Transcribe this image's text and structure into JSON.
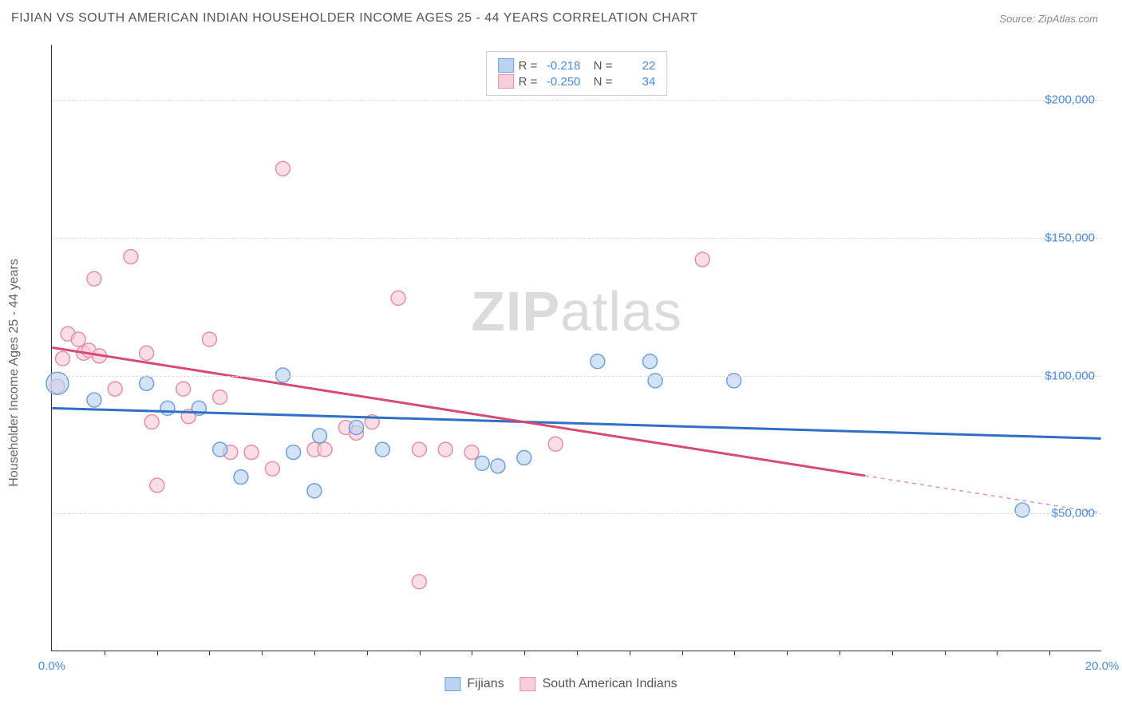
{
  "title": "FIJIAN VS SOUTH AMERICAN INDIAN HOUSEHOLDER INCOME AGES 25 - 44 YEARS CORRELATION CHART",
  "source_label": "Source:",
  "source_name": "ZipAtlas.com",
  "y_axis_label": "Householder Income Ages 25 - 44 years",
  "watermark_bold": "ZIP",
  "watermark_rest": "atlas",
  "chart": {
    "type": "scatter",
    "xlim": [
      0,
      20
    ],
    "ylim": [
      0,
      220000
    ],
    "x_tick_labels": {
      "0": "0.0%",
      "20": "20.0%"
    },
    "x_minor_ticks": [
      1,
      2,
      3,
      4,
      5,
      6,
      7,
      8,
      9,
      10,
      11,
      12,
      13,
      14,
      15,
      16,
      17,
      18,
      19
    ],
    "y_ticks": [
      50000,
      100000,
      150000,
      200000
    ],
    "y_tick_labels": {
      "50000": "$50,000",
      "100000": "$100,000",
      "150000": "$150,000",
      "200000": "$200,000"
    },
    "background_color": "#ffffff",
    "grid_color": "#dddddd",
    "series": [
      {
        "key": "fijians",
        "label": "Fijians",
        "color_stroke": "#6fa0dd",
        "color_fill": "#bcd3ef",
        "fill_opacity": 0.65,
        "marker_r": 9,
        "R": "-0.218",
        "N": "22",
        "regression": {
          "x1": 0.0,
          "y1": 88000,
          "x2": 20.0,
          "y2": 77000,
          "color": "#2f6fc7",
          "width": 3,
          "dash_after_x": null
        },
        "points": [
          {
            "x": 0.1,
            "y": 97000,
            "r": 14
          },
          {
            "x": 0.8,
            "y": 91000
          },
          {
            "x": 1.8,
            "y": 97000
          },
          {
            "x": 2.2,
            "y": 88000
          },
          {
            "x": 2.8,
            "y": 88000
          },
          {
            "x": 3.2,
            "y": 73000
          },
          {
            "x": 3.6,
            "y": 63000
          },
          {
            "x": 4.4,
            "y": 100000
          },
          {
            "x": 4.6,
            "y": 72000
          },
          {
            "x": 5.0,
            "y": 58000
          },
          {
            "x": 5.1,
            "y": 78000
          },
          {
            "x": 5.8,
            "y": 81000
          },
          {
            "x": 6.3,
            "y": 73000
          },
          {
            "x": 8.2,
            "y": 68000
          },
          {
            "x": 8.5,
            "y": 67000
          },
          {
            "x": 9.0,
            "y": 70000
          },
          {
            "x": 10.4,
            "y": 105000
          },
          {
            "x": 11.4,
            "y": 105000
          },
          {
            "x": 11.5,
            "y": 98000
          },
          {
            "x": 13.0,
            "y": 98000
          },
          {
            "x": 18.5,
            "y": 51000
          }
        ]
      },
      {
        "key": "sai",
        "label": "South American Indians",
        "color_stroke": "#e78fa8",
        "color_fill": "#f6cdd8",
        "fill_opacity": 0.65,
        "marker_r": 9,
        "R": "-0.250",
        "N": "34",
        "regression": {
          "x1": 0.0,
          "y1": 110000,
          "x2": 20.0,
          "y2": 50000,
          "color": "#d94a73",
          "width": 3,
          "dash_after_x": 15.5
        },
        "points": [
          {
            "x": 0.1,
            "y": 96000
          },
          {
            "x": 0.2,
            "y": 106000
          },
          {
            "x": 0.3,
            "y": 115000
          },
          {
            "x": 0.5,
            "y": 113000
          },
          {
            "x": 0.6,
            "y": 108000
          },
          {
            "x": 0.7,
            "y": 109000
          },
          {
            "x": 0.8,
            "y": 135000
          },
          {
            "x": 0.9,
            "y": 107000
          },
          {
            "x": 1.2,
            "y": 95000
          },
          {
            "x": 1.5,
            "y": 143000
          },
          {
            "x": 1.8,
            "y": 108000
          },
          {
            "x": 1.9,
            "y": 83000
          },
          {
            "x": 2.0,
            "y": 60000
          },
          {
            "x": 2.5,
            "y": 95000
          },
          {
            "x": 2.6,
            "y": 85000
          },
          {
            "x": 3.0,
            "y": 113000
          },
          {
            "x": 3.2,
            "y": 92000
          },
          {
            "x": 3.4,
            "y": 72000
          },
          {
            "x": 3.8,
            "y": 72000
          },
          {
            "x": 4.2,
            "y": 66000
          },
          {
            "x": 4.4,
            "y": 175000
          },
          {
            "x": 5.0,
            "y": 73000
          },
          {
            "x": 5.2,
            "y": 73000
          },
          {
            "x": 5.6,
            "y": 81000
          },
          {
            "x": 5.8,
            "y": 79000
          },
          {
            "x": 6.1,
            "y": 83000
          },
          {
            "x": 6.6,
            "y": 128000
          },
          {
            "x": 7.0,
            "y": 73000
          },
          {
            "x": 7.0,
            "y": 25000
          },
          {
            "x": 7.5,
            "y": 73000
          },
          {
            "x": 8.0,
            "y": 72000
          },
          {
            "x": 9.6,
            "y": 75000
          },
          {
            "x": 12.4,
            "y": 142000
          }
        ]
      }
    ]
  },
  "legend_stat_r_label": "R =",
  "legend_stat_n_label": "N ="
}
